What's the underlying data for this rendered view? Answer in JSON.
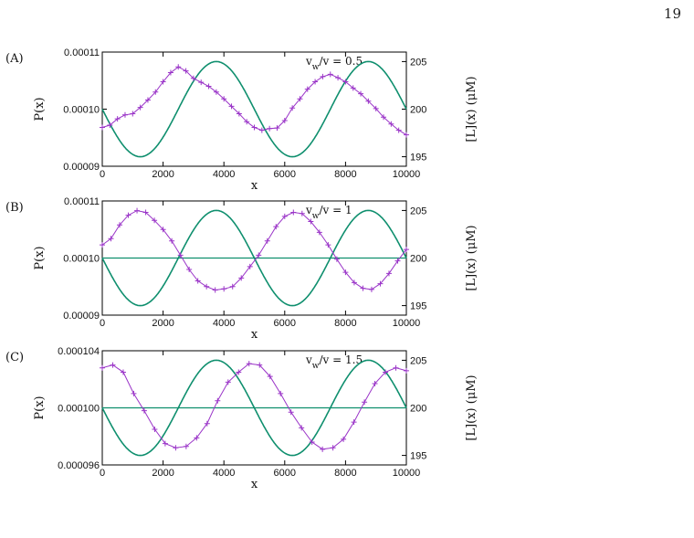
{
  "page_number": "19",
  "caption_fragment": "",
  "colors": {
    "p_series": "#9a34c8",
    "l_series": "#0f8f6e",
    "axis": "#000000"
  },
  "chart_data": [
    {
      "panel_label": "(A)",
      "type": "line",
      "annotation": "v_w/v = 0.5",
      "xlabel": "x",
      "ylabel_left": "P(x)",
      "ylabel_right": "[L](x) (μM)",
      "xlim": [
        0,
        10000
      ],
      "ylim_left": [
        9e-05,
        0.00011
      ],
      "ylim_right": [
        194,
        206
      ],
      "x_ticks": [
        "0",
        "2000",
        "4000",
        "6000",
        "8000",
        "10000"
      ],
      "y_left_ticks": [
        "0.00009",
        "0.00010",
        "0.00011"
      ],
      "y_left_tick_values": [
        9e-05,
        0.0001,
        0.00011
      ],
      "y_right_ticks": [
        "195",
        "200",
        "205"
      ],
      "y_right_tick_values": [
        195,
        200,
        205
      ],
      "series": [
        {
          "axis": "left",
          "values": [
            9.68e-05,
            9.72e-05,
            9.83e-05,
            9.9e-05,
            9.92e-05,
            0.0001003,
            0.0001016,
            0.000103,
            0.0001048,
            0.0001064,
            0.0001074,
            0.0001067,
            0.0001054,
            0.0001047,
            0.000104,
            0.000103,
            0.0001018,
            0.0001005,
            9.92e-05,
            9.78e-05,
            9.68e-05,
            9.63e-05,
            9.66e-05,
            9.67e-05,
            9.8e-05,
            0.0001002,
            0.0001018,
            0.0001035,
            0.0001048,
            0.0001057,
            0.0001061,
            0.0001055,
            0.0001048,
            0.0001037,
            0.0001027,
            0.0001014,
            0.0001001,
            9.86e-05,
            9.74e-05,
            9.63e-05,
            9.55e-05
          ]
        },
        {
          "axis": "right",
          "function": "sine",
          "period": 5000,
          "amplitude": 5,
          "offset": 200,
          "phase_deg": 180
        }
      ]
    },
    {
      "panel_label": "(B)",
      "type": "line",
      "annotation": "v_w/v = 1",
      "xlabel": "x",
      "ylabel_left": "P(x)",
      "ylabel_right": "[L](x) (μM)",
      "xlim": [
        0,
        10000
      ],
      "ylim_left": [
        9e-05,
        0.00011
      ],
      "ylim_right": [
        194,
        206
      ],
      "x_ticks": [
        "0",
        "2000",
        "4000",
        "6000",
        "8000",
        "10000"
      ],
      "y_left_ticks": [
        "0.00009",
        "0.00010",
        "0.00011"
      ],
      "y_left_tick_values": [
        9e-05,
        0.0001,
        0.00011
      ],
      "y_right_ticks": [
        "195",
        "200",
        "205"
      ],
      "y_right_tick_values": [
        195,
        200,
        205
      ],
      "series": [
        {
          "axis": "left",
          "values": [
            0.0001023,
            0.0001034,
            0.0001058,
            0.0001075,
            0.0001083,
            0.000108,
            0.0001066,
            0.000105,
            0.000103,
            0.0001005,
            9.8e-05,
            9.6e-05,
            9.5e-05,
            9.44e-05,
            9.46e-05,
            9.5e-05,
            9.65e-05,
            9.85e-05,
            0.0001005,
            0.000103,
            0.0001055,
            0.0001073,
            0.000108,
            0.0001078,
            0.0001064,
            0.0001045,
            0.0001023,
            9.98e-05,
            9.75e-05,
            9.57e-05,
            9.47e-05,
            9.45e-05,
            9.55e-05,
            9.73e-05,
            9.95e-05,
            0.0001015
          ]
        },
        {
          "axis": "right",
          "function": "sine",
          "period": 5000,
          "amplitude": 5,
          "offset": 200,
          "phase_deg": 180
        },
        {
          "axis": "right",
          "function": "constant",
          "value": 200
        }
      ]
    },
    {
      "panel_label": "(C)",
      "type": "line",
      "annotation": "v_w/v = 1.5",
      "xlabel": "x",
      "ylabel_left": "P(x)",
      "ylabel_right": "[L](x) (μM)",
      "xlim": [
        0,
        10000
      ],
      "ylim_left": [
        9.6e-05,
        0.000104
      ],
      "ylim_right": [
        194,
        206
      ],
      "x_ticks": [
        "0",
        "2000",
        "4000",
        "6000",
        "8000",
        "10000"
      ],
      "y_left_ticks": [
        "0.000096",
        "0.000100",
        "0.000104"
      ],
      "y_left_tick_values": [
        9.6e-05,
        0.0001,
        0.000104
      ],
      "y_right_ticks": [
        "195",
        "200",
        "205"
      ],
      "y_right_tick_values": [
        195,
        200,
        205
      ],
      "series": [
        {
          "axis": "left",
          "values": [
            0.0001028,
            0.000103,
            0.0001025,
            0.000101,
            9.98e-05,
            9.85e-05,
            9.75e-05,
            9.72e-05,
            9.73e-05,
            9.79e-05,
            9.89e-05,
            0.0001005,
            0.0001018,
            0.0001025,
            0.0001031,
            0.000103,
            0.0001022,
            0.000101,
            9.97e-05,
            9.86e-05,
            9.76e-05,
            9.71e-05,
            9.72e-05,
            9.78e-05,
            9.9e-05,
            0.0001004,
            0.0001017,
            0.0001025,
            0.0001028,
            0.0001026
          ]
        },
        {
          "axis": "right",
          "function": "sine",
          "period": 5000,
          "amplitude": 5,
          "offset": 200,
          "phase_deg": 180
        },
        {
          "axis": "right",
          "function": "constant",
          "value": 200
        }
      ]
    }
  ]
}
